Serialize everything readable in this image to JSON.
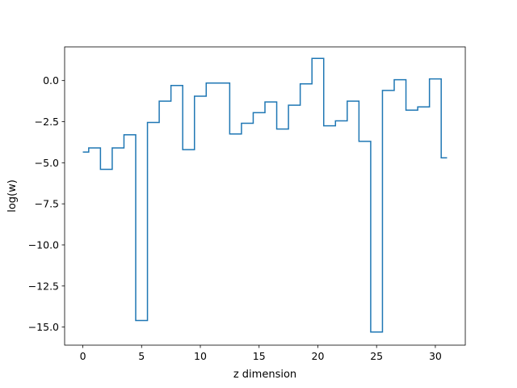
{
  "chart_data": {
    "type": "line",
    "drawstyle": "steps-mid",
    "title": "",
    "xlabel": "z dimension",
    "ylabel": "log(w)",
    "xlim": [
      -1.55,
      32.55
    ],
    "ylim": [
      -16.1,
      2.05
    ],
    "xticks": [
      0,
      5,
      10,
      15,
      20,
      25,
      30
    ],
    "xtick_labels": [
      "0",
      "5",
      "10",
      "15",
      "20",
      "25",
      "30"
    ],
    "yticks": [
      0,
      -2.5,
      -5,
      -7.5,
      -10,
      -12.5,
      -15
    ],
    "ytick_labels": [
      "0.0",
      "−2.5",
      "−5.0",
      "−7.5",
      "−10.0",
      "−12.5",
      "−15.0"
    ],
    "grid": false,
    "line_color": "#1f77b4",
    "x": [
      0,
      1,
      2,
      3,
      4,
      5,
      6,
      7,
      8,
      9,
      10,
      11,
      12,
      13,
      14,
      15,
      16,
      17,
      18,
      19,
      20,
      21,
      22,
      23,
      24,
      25,
      26,
      27,
      28,
      29,
      30,
      31
    ],
    "values": [
      -4.35,
      -4.1,
      -5.4,
      -4.1,
      -3.3,
      -14.6,
      -2.55,
      -1.25,
      -0.3,
      -4.2,
      -0.95,
      -0.15,
      -0.15,
      -3.25,
      -2.6,
      -1.95,
      -1.3,
      -2.95,
      -1.5,
      -0.2,
      1.35,
      -2.75,
      -2.45,
      -1.25,
      -3.7,
      -15.3,
      -0.6,
      0.05,
      -1.8,
      -1.6,
      0.1,
      -4.7
    ]
  }
}
